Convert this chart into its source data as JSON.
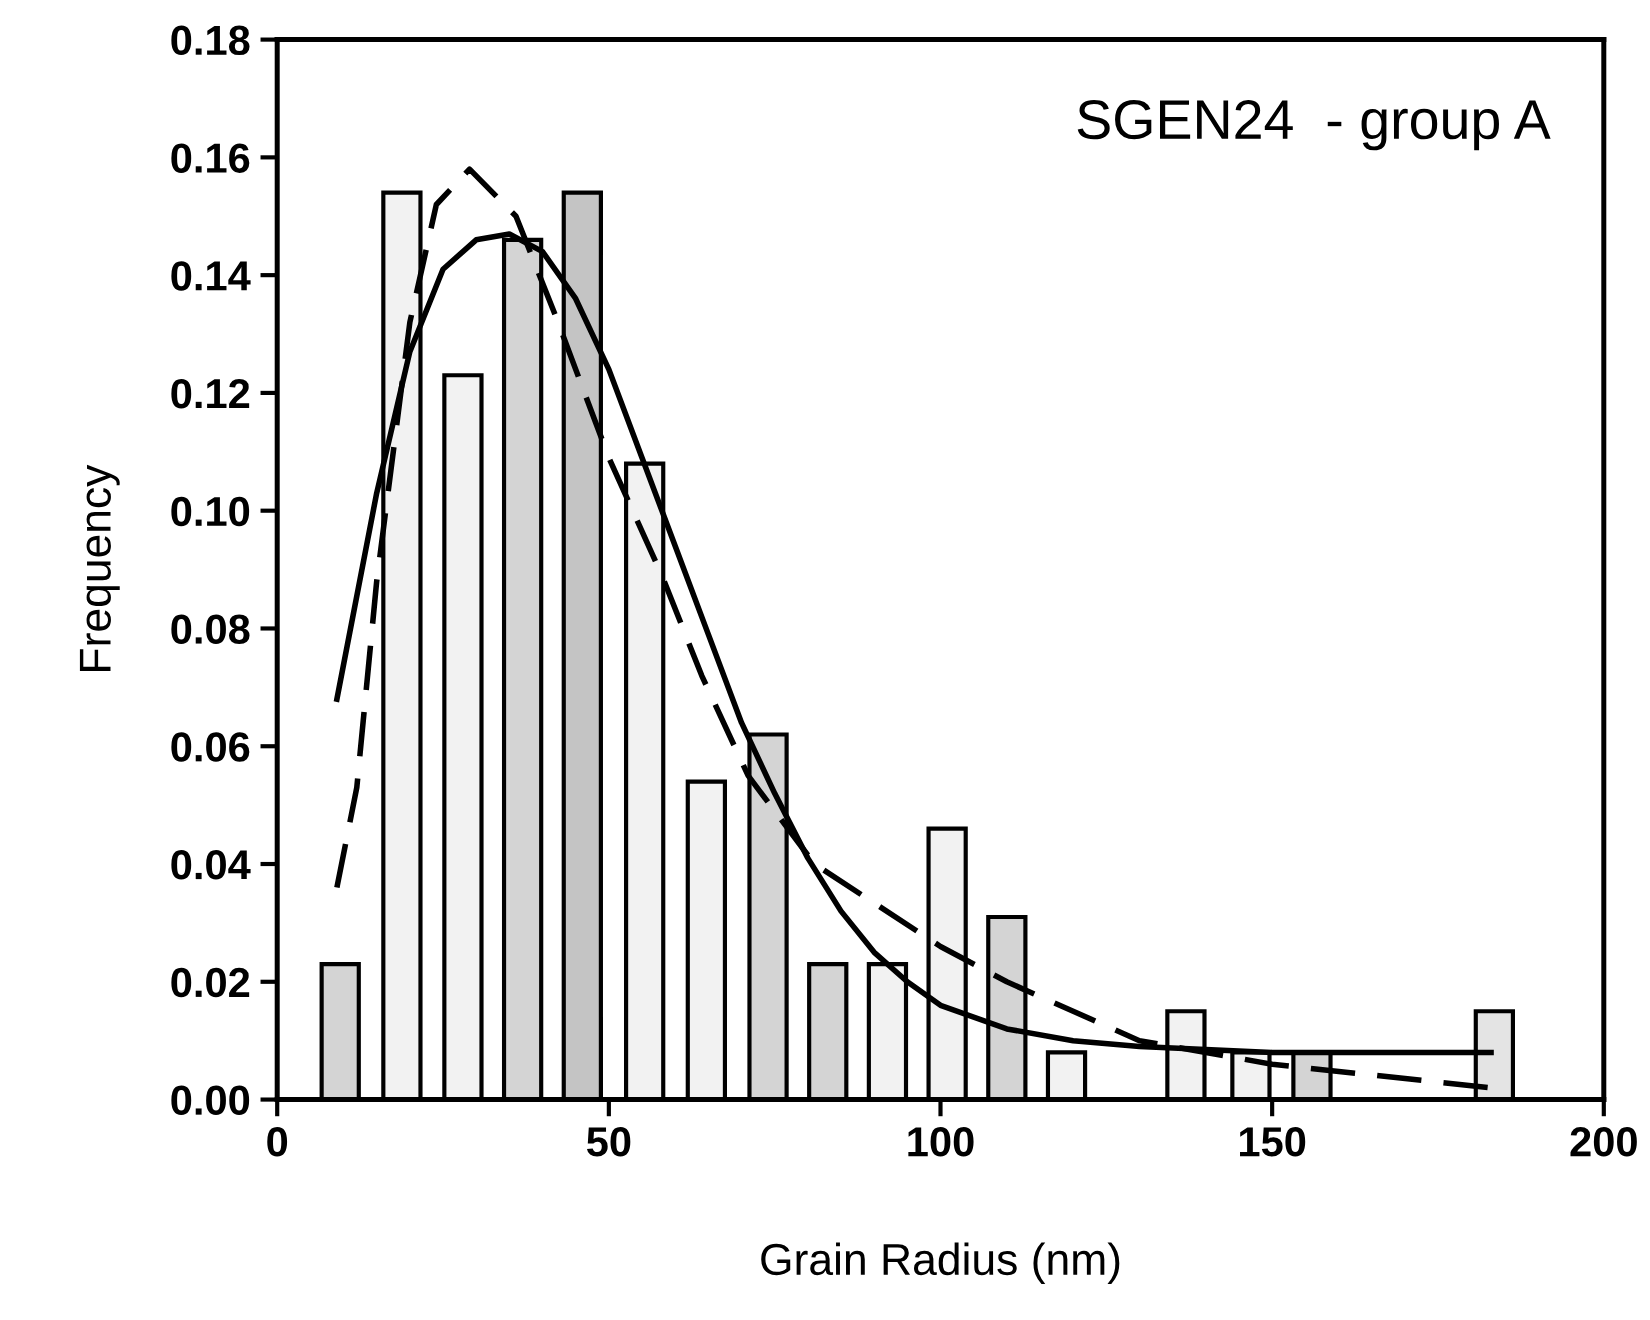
{
  "chart_data": {
    "type": "bar",
    "xlabel": "Grain Radius (nm)",
    "ylabel": "Frequency",
    "annotations": [
      "SGEN24  - group A"
    ],
    "xlim": [
      0,
      200
    ],
    "xticks": [
      0,
      50,
      100,
      150,
      200
    ],
    "ylim": [
      0,
      0.18
    ],
    "yticks": [
      {
        "value": 0,
        "label": "0.00"
      },
      {
        "value": 0.02,
        "label": "0.02"
      },
      {
        "value": 0.04,
        "label": "0.04"
      },
      {
        "value": 0.06,
        "label": "0.06"
      },
      {
        "value": 0.08,
        "label": "0.08"
      },
      {
        "value": 0.1,
        "label": "0.10"
      },
      {
        "value": 0.12,
        "label": "0.12"
      },
      {
        "value": 0.14,
        "label": "0.14"
      },
      {
        "value": 0.16,
        "label": "0.16"
      },
      {
        "value": 0.18,
        "label": "0.18"
      }
    ],
    "grid": false,
    "legend": false,
    "series": [
      {
        "x": [
          9.5,
          18.8,
          28,
          37,
          46,
          55.4,
          64.7,
          74,
          83,
          92,
          101,
          110,
          119,
          137,
          146.8,
          156,
          183.5
        ],
        "values": [
          0.023,
          0.154,
          0.123,
          0.146,
          0.154,
          0.108,
          0.054,
          0.062,
          0.023,
          0.023,
          0.046,
          0.031,
          0.008,
          0.015,
          0.008,
          0.008,
          0.015
        ],
        "colors": [
          "#d4d4d4",
          "#f2f2f2",
          "#f2f2f2",
          "#d4d4d4",
          "#c4c4c4",
          "#f2f2f2",
          "#f2f2f2",
          "#d4d4d4",
          "#d4d4d4",
          "#f2f2f2",
          "#f2f2f2",
          "#d4d4d4",
          "#f2f2f2",
          "#f2f2f2",
          "#f2f2f2",
          "#d4d4d4",
          "#e4e4e4"
        ]
      },
      {
        "type": "line",
        "color": "#000000",
        "line_style": "solid",
        "marker": "none",
        "x": [
          9,
          15,
          20,
          25,
          30,
          35,
          40,
          45,
          50,
          55,
          60,
          65,
          70,
          75,
          80,
          85,
          90,
          95,
          100,
          110,
          120,
          130,
          140,
          150,
          165,
          183
        ],
        "values": [
          0.068,
          0.103,
          0.127,
          0.141,
          0.146,
          0.147,
          0.144,
          0.136,
          0.124,
          0.109,
          0.094,
          0.079,
          0.064,
          0.052,
          0.041,
          0.032,
          0.025,
          0.02,
          0.016,
          0.012,
          0.01,
          0.009,
          0.0085,
          0.008,
          0.008,
          0.008
        ]
      },
      {
        "type": "line",
        "color": "#000000",
        "line_style": "dashed",
        "marker": "none",
        "x": [
          9,
          12,
          15,
          20,
          24,
          29,
          36,
          42,
          50,
          58,
          64,
          71,
          81,
          100,
          110,
          120,
          130,
          150,
          183
        ],
        "values": [
          0.036,
          0.053,
          0.088,
          0.132,
          0.152,
          0.158,
          0.15,
          0.133,
          0.109,
          0.089,
          0.072,
          0.055,
          0.04,
          0.026,
          0.02,
          0.015,
          0.01,
          0.006,
          0.002
        ]
      }
    ]
  }
}
